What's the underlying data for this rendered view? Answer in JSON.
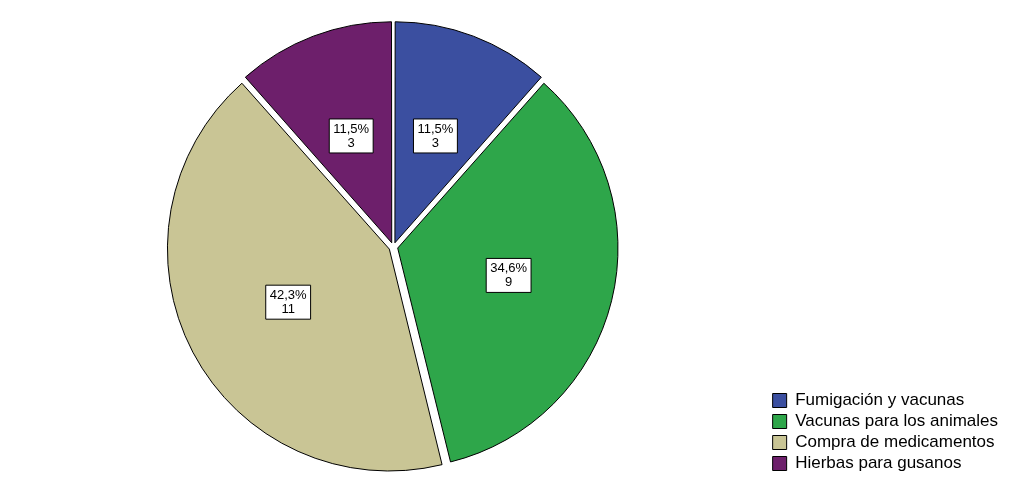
{
  "chart_data": {
    "type": "pie",
    "categories": [
      "Fumigación y vacunas",
      "Vacunas para los animales",
      "Compra de medicamentos",
      "Hierbas para gusanos"
    ],
    "values": [
      3,
      9,
      11,
      3
    ],
    "colors": [
      "#3b4fa0",
      "#2ea64a",
      "#c9c595",
      "#6d1f6b"
    ],
    "value_labels": [
      "11,5%\n3",
      "34,6%\n9",
      "42,3%\n11",
      "11,5%\n3"
    ],
    "legend": "bottom right"
  }
}
